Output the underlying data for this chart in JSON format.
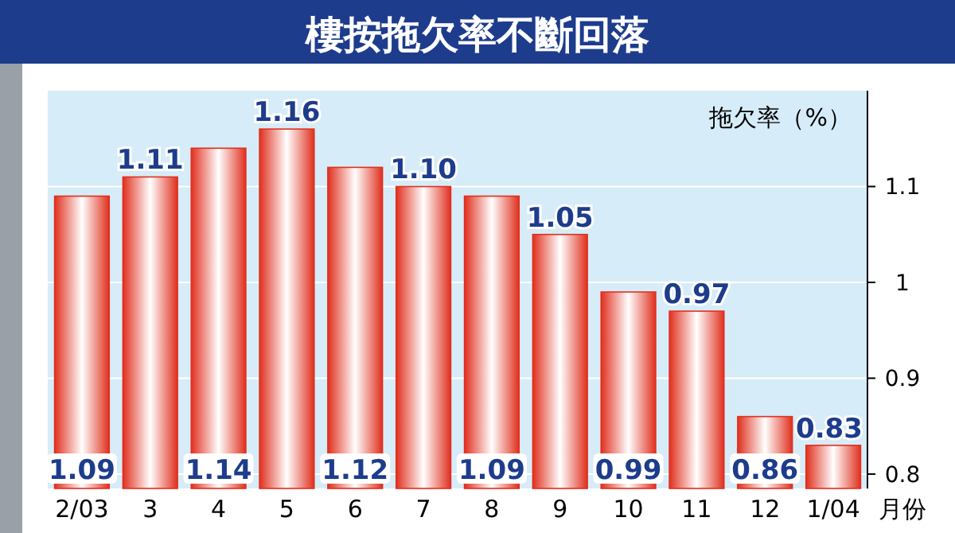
{
  "chart_data": {
    "type": "bar",
    "title": "樓按拖欠率不斷回落",
    "ylabel": "拖欠率（%）",
    "xlabel": "月份",
    "categories": [
      "2/03",
      "3",
      "4",
      "5",
      "6",
      "7",
      "8",
      "9",
      "10",
      "11",
      "12",
      "1/04"
    ],
    "values": [
      1.09,
      1.11,
      1.14,
      1.16,
      1.12,
      1.1,
      1.09,
      1.05,
      0.99,
      0.97,
      0.86,
      0.83
    ],
    "value_labels": [
      "1.09",
      "1.11",
      "1.14",
      "1.16",
      "1.12",
      "1.10",
      "1.09",
      "1.05",
      "0.99",
      "0.97",
      "0.86",
      "0.83"
    ],
    "color": "#e0301e",
    "ylim": [
      0.785,
      1.2
    ],
    "yticks": [
      0.8,
      0.9,
      1.0,
      1.1
    ],
    "grid": "y"
  }
}
